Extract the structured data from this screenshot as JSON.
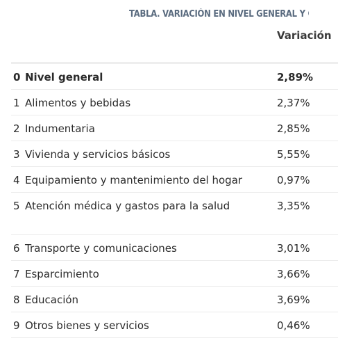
{
  "title": "TABLA. VARIACIÓN EN NIVEL GENERAL Y CAPÍTULOS",
  "column_header": "Variación",
  "rows": [
    {
      "index": "0",
      "name": "Nivel general",
      "value": "2,89%"
    },
    {
      "index": "1",
      "name": "Alimentos y bebidas",
      "value": "2,37%"
    },
    {
      "index": "2",
      "name": "Indumentaria",
      "value": "2,85%"
    },
    {
      "index": "3",
      "name": "Vivienda y servicios básicos",
      "value": "5,55%"
    },
    {
      "index": "4",
      "name": "Equipamiento y mantenimiento del hogar",
      "value": "0,97%"
    },
    {
      "index": "5",
      "name": "Atención médica y gastos para la salud",
      "value": "3,35%"
    },
    {
      "index": "6",
      "name": "Transporte y comunicaciones",
      "value": "3,01%"
    },
    {
      "index": "7",
      "name": "Esparcimiento",
      "value": "3,66%"
    },
    {
      "index": "8",
      "name": "Educación",
      "value": "3,69%"
    },
    {
      "index": "9",
      "name": "Otros bienes y servicios",
      "value": "0,46%"
    }
  ]
}
